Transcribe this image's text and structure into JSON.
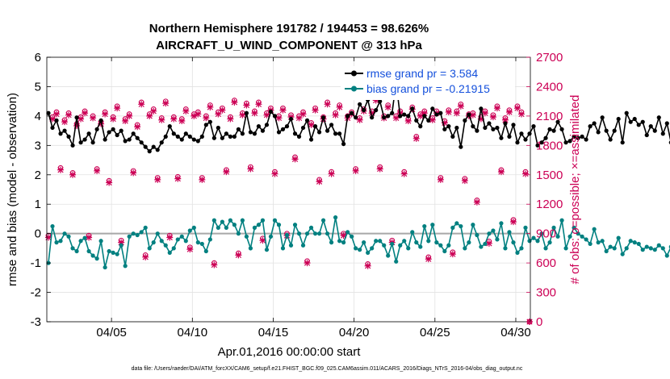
{
  "chart_data": {
    "type": "line",
    "title_line1": "Northern Hemisphere 191782 / 194453 = 98.626%",
    "title_line2": "AIRCRAFT_U_WIND_COMPONENT @ 313 hPa",
    "xlabel": "Apr.01,2016 00:00:00 start",
    "ylabel_left": "rmse and bias (model - observation)",
    "ylabel_right": "# of obs: o=possible; ×=assimilated",
    "footnote": "data file: /Users/raeder/DAI/ATM_forcXX/CAM6_setup/f.e21.FHIST_BGC.f09_025.CAM6assim.011/ACARS_2016/Diags_NTrS_2016-04/obs_diag_output.nc",
    "xlim": [
      1,
      30.9
    ],
    "ylim_left": [
      -3,
      6
    ],
    "ylim_right": [
      0,
      2700
    ],
    "x_ticks": [
      5,
      10,
      15,
      20,
      25,
      30
    ],
    "x_tick_labels": [
      "04/05",
      "04/10",
      "04/15",
      "04/20",
      "04/25",
      "04/30"
    ],
    "y_left_ticks": [
      -3,
      -2,
      -1,
      0,
      1,
      2,
      3,
      4,
      5,
      6
    ],
    "y_left_tick_labels": [
      "-3",
      "-2",
      "-1",
      "0",
      "1",
      "2",
      "3",
      "4",
      "5",
      "6"
    ],
    "y_right_ticks": [
      0,
      300,
      600,
      900,
      1200,
      1500,
      1800,
      2100,
      2400,
      2700
    ],
    "y_right_tick_labels": [
      "0",
      "300",
      "600",
      "900",
      "1200",
      "1500",
      "1800",
      "2100",
      "2400",
      "2700"
    ],
    "x_start": 1.1,
    "x_step": 0.25,
    "series": [
      {
        "name": "rmse grand pr = 3.584",
        "color": "#000000",
        "values": [
          4.1,
          3.6,
          3.85,
          3.4,
          3.5,
          3.3,
          3.0,
          3.95,
          3.1,
          3.2,
          3.4,
          3.1,
          3.55,
          3.85,
          3.2,
          3.45,
          3.55,
          3.35,
          3.5,
          3.15,
          3.2,
          3.4,
          3.25,
          3.1,
          2.95,
          2.8,
          2.95,
          2.85,
          3.1,
          3.3,
          3.65,
          3.4,
          3.3,
          3.2,
          3.4,
          3.3,
          3.2,
          3.15,
          3.3,
          3.7,
          3.8,
          3.25,
          3.6,
          3.25,
          3.4,
          3.3,
          3.3,
          3.55,
          3.4,
          4.1,
          3.45,
          3.4,
          3.65,
          3.5,
          3.7,
          4.15,
          4.0,
          3.45,
          3.55,
          3.65,
          3.9,
          3.4,
          3.3,
          3.6,
          3.85,
          3.2,
          3.65,
          3.45,
          3.95,
          3.5,
          3.7,
          3.4,
          3.4,
          3.05,
          4.0,
          4.1,
          3.95,
          4.4,
          4.2,
          4.55,
          3.95,
          4.2,
          4.5,
          3.95,
          4.0,
          4.1,
          5.15,
          4.0,
          4.05,
          4.0,
          4.25,
          3.85,
          3.65,
          4.0,
          3.85,
          4.25,
          4.05,
          4.1,
          3.55,
          3.65,
          3.3,
          3.6,
          2.95,
          3.85,
          4.05,
          3.65,
          3.5,
          4.25,
          3.6,
          3.75,
          3.55,
          3.6,
          3.25,
          3.75,
          3.3,
          3.7,
          3.1,
          3.4,
          3.2,
          3.4,
          3.65,
          3.0,
          3.1,
          3.25,
          3.55,
          3.5,
          3.8,
          3.55,
          3.1,
          3.15,
          3.3,
          3.25,
          3.3,
          3.2,
          3.65,
          3.75,
          3.45,
          3.95,
          3.5,
          3.2,
          3.5,
          3.9,
          3.1,
          4.1,
          3.8,
          3.9,
          3.7,
          3.8,
          3.35,
          3.65,
          3.5,
          3.95,
          3.4,
          3.75,
          3.1,
          3.3,
          3.6,
          3.0,
          3.95,
          3.85,
          3.9,
          3.2,
          3.45,
          3.5,
          3.6
        ]
      },
      {
        "name": "bias grand pr = -0.21915",
        "color": "#008080",
        "values": [
          -1.0,
          0.25,
          -0.3,
          -0.25,
          0.0,
          -0.1,
          -0.5,
          -0.6,
          -0.25,
          -0.15,
          -0.6,
          -0.75,
          -0.85,
          -0.25,
          -1.15,
          -0.6,
          -0.65,
          -0.7,
          -0.4,
          -1.1,
          -0.1,
          0.0,
          -0.05,
          0.05,
          0.2,
          -0.5,
          -0.3,
          0.0,
          -0.25,
          -0.4,
          -0.65,
          -0.5,
          -0.2,
          -0.1,
          -0.25,
          0.1,
          0.2,
          -0.3,
          -0.35,
          -0.6,
          -0.2,
          0.45,
          0.2,
          0.4,
          0.2,
          0.45,
          0.3,
          0.0,
          0.45,
          -0.1,
          -0.5,
          0.2,
          0.3,
          0.45,
          -0.55,
          -0.1,
          0.45,
          0.3,
          -0.5,
          -0.05,
          -0.4,
          0.3,
          0.0,
          -0.4,
          0.0,
          0.2,
          0.0,
          0.0,
          0.45,
          0.0,
          -0.3,
          0.55,
          -0.25,
          -0.3,
          0.05,
          -0.1,
          -0.5,
          -0.55,
          -0.3,
          -0.65,
          -0.5,
          -0.25,
          -0.25,
          -0.4,
          -0.75,
          -0.35,
          -0.95,
          -0.4,
          -0.25,
          -0.5,
          0.05,
          -0.3,
          -0.45,
          0.25,
          -0.25,
          0.3,
          -0.3,
          -0.4,
          -0.6,
          -0.4,
          0.2,
          0.35,
          0.25,
          -0.5,
          -0.3,
          0.3,
          -0.05,
          -0.45,
          -0.35,
          0.0,
          0.1,
          -0.2,
          0.35,
          -0.5,
          0.05,
          -0.3,
          -0.65,
          -0.5,
          0.2,
          -0.25,
          -0.15,
          -0.25,
          0.0,
          -0.5,
          -0.3,
          0.2,
          -0.1,
          0.45,
          -0.5,
          -0.1,
          0.2,
          0.0,
          -0.1,
          -0.2,
          -0.35,
          0.15,
          -0.3,
          -0.25,
          -0.6,
          -0.45,
          -0.5,
          -0.15,
          -0.7,
          -0.5,
          -0.25,
          -0.3,
          -0.35,
          -0.55,
          -0.45,
          -0.5,
          -0.55,
          -0.4,
          -0.5,
          -0.75,
          -0.45,
          -0.9,
          -0.75,
          -0.55,
          -0.35,
          -0.6,
          -0.7,
          -1.0,
          -0.8,
          -0.75
        ]
      }
    ],
    "obs_count": {
      "name": "# of obs",
      "color": "#cc0055",
      "days": [
        1.1,
        1.35,
        1.6,
        1.85,
        2.1,
        2.35,
        2.6,
        2.85,
        3.1,
        3.35,
        3.6,
        3.85,
        4.1,
        4.35,
        4.6,
        4.85,
        5.1,
        5.35,
        5.6,
        5.85,
        6.1,
        6.35,
        6.6,
        6.85,
        7.1,
        7.35,
        7.6,
        7.85,
        8.1,
        8.35,
        8.6,
        8.85,
        9.1,
        9.35,
        9.6,
        9.85,
        10.1,
        10.35,
        10.6,
        10.85,
        11.1,
        11.35,
        11.6,
        11.85,
        12.1,
        12.35,
        12.6,
        12.85,
        13.1,
        13.35,
        13.6,
        13.85,
        14.1,
        14.35,
        14.6,
        14.85,
        15.1,
        15.35,
        15.6,
        15.85,
        16.1,
        16.35,
        16.6,
        16.85,
        17.1,
        17.35,
        17.6,
        17.85,
        18.1,
        18.35,
        18.6,
        18.85,
        19.1,
        19.35,
        19.6,
        19.85,
        20.1,
        20.35,
        20.6,
        20.85,
        21.1,
        21.35,
        21.6,
        21.85,
        22.1,
        22.35,
        22.6,
        22.85,
        23.1,
        23.35,
        23.6,
        23.85,
        24.1,
        24.35,
        24.6,
        24.85,
        25.1,
        25.35,
        25.6,
        25.85,
        26.1,
        26.35,
        26.6,
        26.85,
        27.1,
        27.35,
        27.6,
        27.85,
        28.1,
        28.35,
        28.6,
        28.85,
        29.1,
        29.35,
        29.6,
        29.85,
        30.1,
        30.35,
        30.6,
        30.85
      ],
      "possible": [
        880,
        2090,
        2140,
        1570,
        2060,
        2130,
        1520,
        2020,
        2090,
        2150,
        880,
        2100,
        1560,
        2040,
        2140,
        1440,
        2090,
        2200,
        830,
        2070,
        2120,
        1540,
        2010,
        2240,
        680,
        2120,
        2170,
        1470,
        2080,
        2250,
        880,
        2090,
        1480,
        2070,
        2170,
        760,
        2120,
        2140,
        1470,
        2100,
        2210,
        600,
        2140,
        2180,
        1550,
        2090,
        2260,
        700,
        2130,
        2230,
        1580,
        2150,
        2240,
        850,
        2130,
        2180,
        1530,
        2100,
        2180,
        900,
        2110,
        1680,
        2100,
        2140,
        620,
        2030,
        2180,
        1450,
        2090,
        2240,
        1530,
        2130,
        2210,
        900,
        2100,
        2140,
        1560,
        2080,
        2170,
        590,
        2150,
        2280,
        1580,
        2100,
        2210,
        830,
        2100,
        2150,
        1530,
        2070,
        2190,
        1890,
        2120,
        2150,
        660,
        2080,
        2150,
        1470,
        2050,
        2160,
        710,
        2150,
        2220,
        1460,
        2120,
        2130,
        1240,
        2090,
        2150,
        820,
        2110,
        2200,
        1550,
        2080,
        2160,
        1040,
        2200,
        2140,
        1530,
        0
      ],
      "assimilated": [
        860,
        2070,
        2120,
        1550,
        2040,
        2110,
        1500,
        2000,
        2070,
        2130,
        860,
        2080,
        1540,
        2020,
        2120,
        1420,
        2070,
        2180,
        810,
        2050,
        2100,
        1520,
        1990,
        2220,
        660,
        2100,
        2150,
        1450,
        2060,
        2230,
        860,
        2070,
        1460,
        2050,
        2150,
        740,
        2100,
        2120,
        1450,
        2080,
        2190,
        580,
        2120,
        2160,
        1530,
        2070,
        2240,
        680,
        2110,
        2210,
        1560,
        2130,
        2220,
        830,
        2110,
        2160,
        1510,
        2080,
        2160,
        880,
        2090,
        1660,
        2080,
        2120,
        600,
        2010,
        2160,
        1430,
        2070,
        2220,
        1510,
        2110,
        2190,
        880,
        2080,
        2120,
        1540,
        2060,
        2150,
        570,
        2130,
        2260,
        1560,
        2080,
        2190,
        810,
        2080,
        2130,
        1510,
        2050,
        2170,
        1870,
        2100,
        2130,
        640,
        2060,
        2130,
        1450,
        2030,
        2140,
        690,
        2130,
        2200,
        1440,
        2100,
        2110,
        1220,
        2070,
        2130,
        800,
        2090,
        2180,
        1530,
        2060,
        2140,
        1020,
        2180,
        2120,
        1510,
        0
      ]
    }
  }
}
